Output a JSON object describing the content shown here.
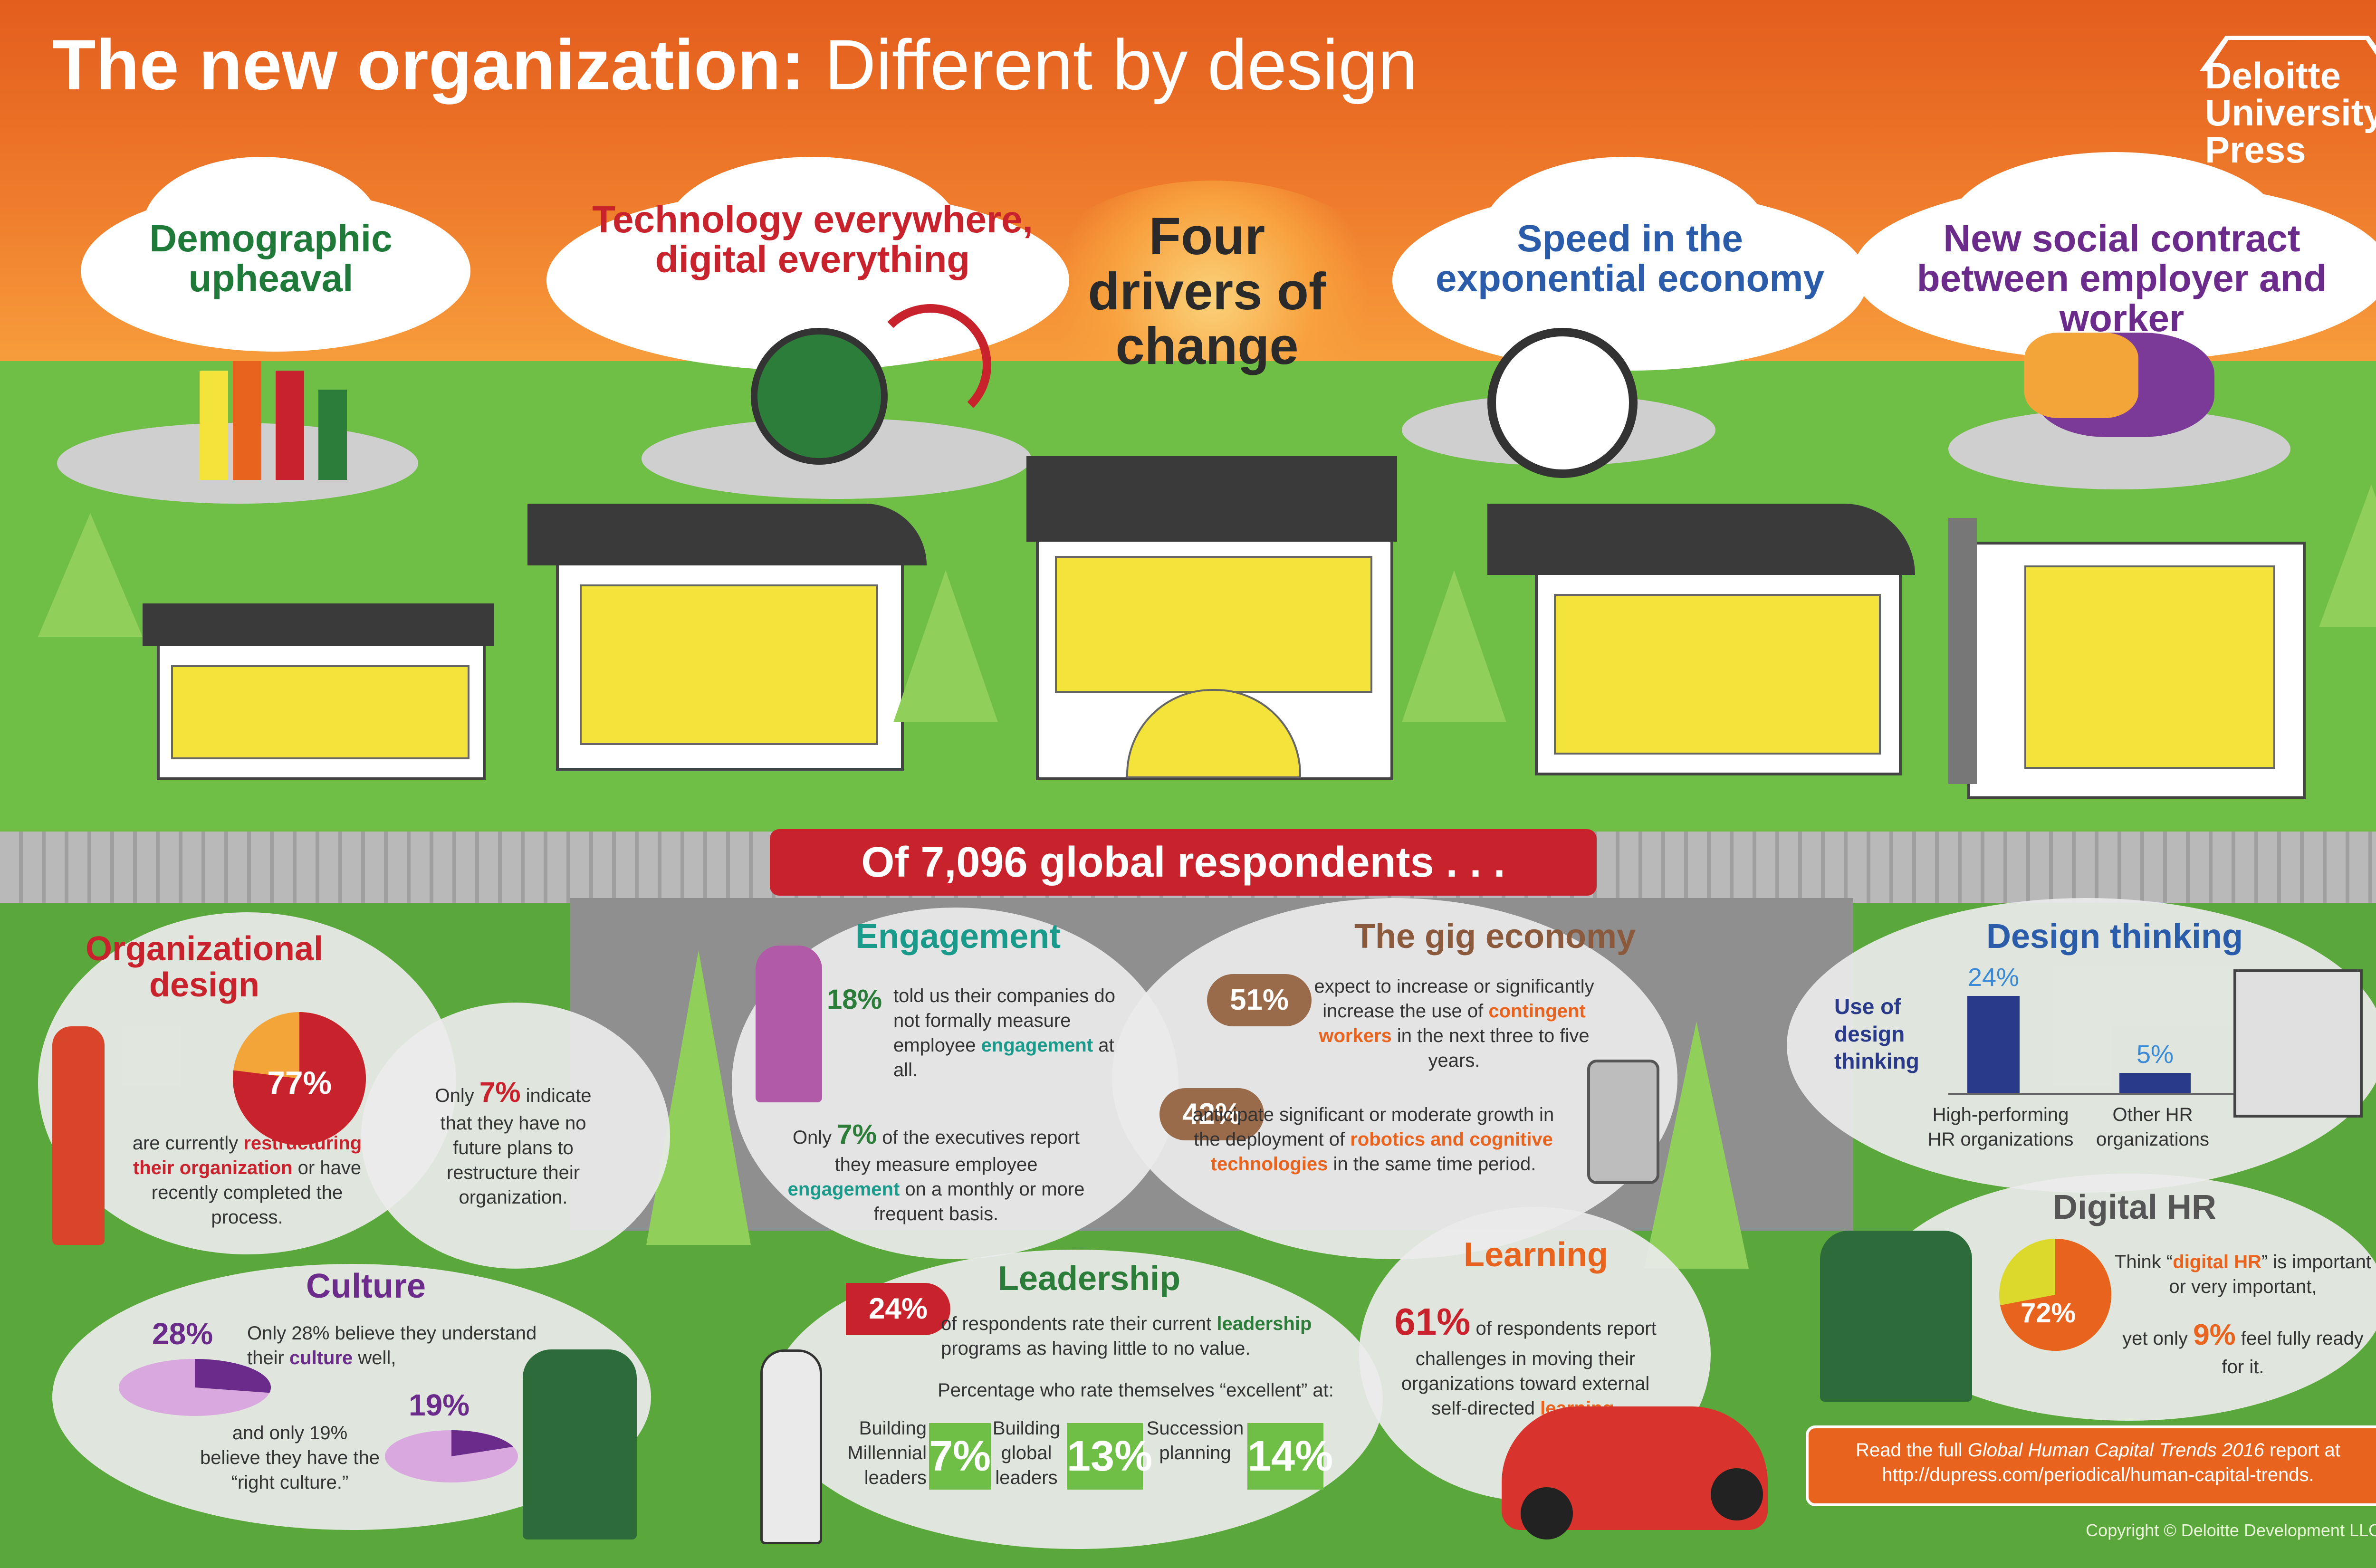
{
  "title": {
    "bold": "The new organization:",
    "light": "Different by design"
  },
  "logo": [
    "Deloitte",
    "University",
    "Press"
  ],
  "drivers": {
    "heading": "Four drivers of change",
    "items": [
      {
        "label": "Demographic upheaval",
        "color": "#1f7a3a"
      },
      {
        "label": "Technology everywhere, digital everything",
        "color": "#c8232c"
      },
      {
        "label": "Speed in the exponential economy",
        "color": "#2a5caa"
      },
      {
        "label": "New social contract between employer and worker",
        "color": "#6a2b8a"
      }
    ]
  },
  "banner": "Of 7,096 global respondents . . .",
  "org_design": {
    "title": "Organizational design",
    "percent": "77%",
    "percent_value": 77,
    "text_pre": "are currently",
    "text_bold": "restructuring their organization",
    "text_post": "or have recently completed the process.",
    "side_pre": "Only",
    "side_pct": "7%",
    "side_post": "indicate that they have no future plans to restructure their organization."
  },
  "culture": {
    "title": "Culture",
    "pct1": "28%",
    "pct1_value": 28,
    "text1_pre": "Only 28% believe they understand their",
    "text1_bold": "culture",
    "text1_post": "well,",
    "pct2": "19%",
    "pct2_value": 19,
    "text2": "and only 19% believe they have the “right culture.”"
  },
  "engagement": {
    "title": "Engagement",
    "pct1": "18%",
    "text1_pre": "told us their companies do not formally measure employee",
    "text1_bold": "engagement",
    "text1_post": "at all.",
    "pre2": "Only",
    "pct2": "7%",
    "text2_pre": "of the executives report they measure employee",
    "text2_bold": "engagement",
    "text2_post": "on a monthly or more frequent basis."
  },
  "gig": {
    "title": "The gig economy",
    "pct1": "51%",
    "text1_pre": "expect to increase or significantly increase the use of",
    "text1_bold": "contingent workers",
    "text1_post": "in the next three to five years.",
    "pct2": "42%",
    "text2_pre": "anticipate significant or moderate growth in the deployment of",
    "text2_bold": "robotics and cognitive technologies",
    "text2_post": "in the same time period."
  },
  "design_thinking": {
    "title": "Design thinking",
    "axis_label": "Use of design thinking",
    "chart_data": {
      "type": "bar",
      "categories": [
        "High-performing HR organizations",
        "Other HR organizations"
      ],
      "values": [
        24,
        5
      ],
      "value_labels": [
        "24%",
        "5%"
      ],
      "title": "Use of design thinking"
    }
  },
  "leadership": {
    "title": "Leadership",
    "pct": "24%",
    "text_pre": "of respondents rate their current",
    "text_bold": "leadership",
    "text_post": "programs as having little to no value.",
    "subhead": "Percentage who rate themselves “excellent” at:",
    "items": [
      {
        "label": "Building Millennial leaders",
        "value": "7%"
      },
      {
        "label": "Building global leaders",
        "value": "13%"
      },
      {
        "label": "Succession planning",
        "value": "14%"
      }
    ]
  },
  "learning": {
    "title": "Learning",
    "pct": "61%",
    "text_pre": "of respondents report challenges in moving their organizations toward external self-directed",
    "text_bold": "learning."
  },
  "digital_hr": {
    "title": "Digital HR",
    "pct": "72%",
    "pct_value": 72,
    "text1_pre": "Think “",
    "text1_bold": "digital HR",
    "text1_post": "” is important or very important,",
    "text2_pre": "yet only",
    "text2_pct": "9%",
    "text2_post": "feel fully ready for it."
  },
  "footer": {
    "read_pre": "Read the full",
    "read_italic": "Global Human Capital Trends 2016",
    "read_post": "report at",
    "url": "http://dupress.com/periodical/human-capital-trends.",
    "copyright": "Copyright © Deloitte Development LLC."
  }
}
